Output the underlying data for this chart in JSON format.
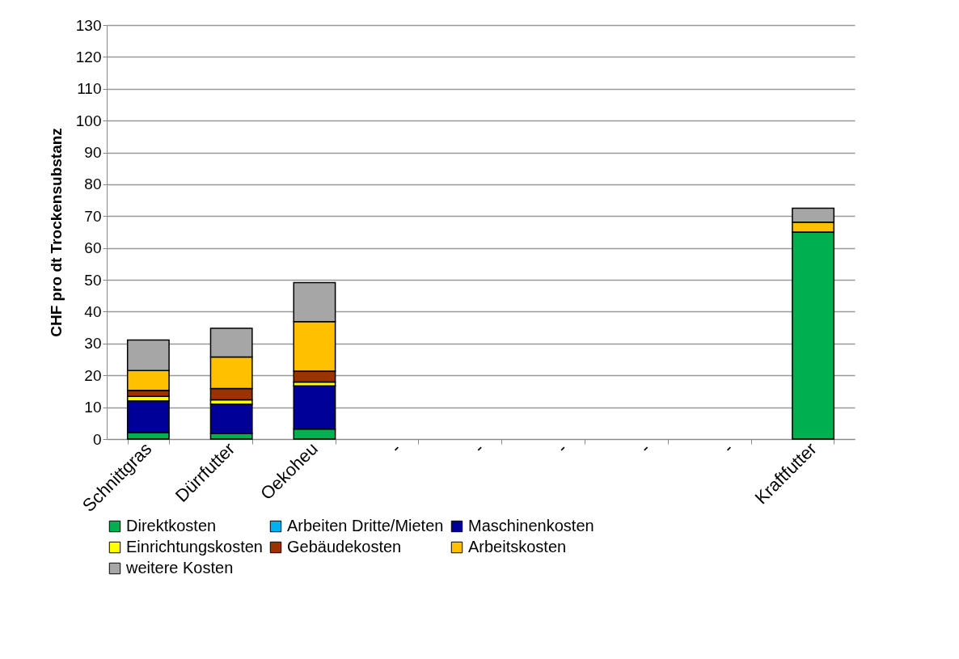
{
  "chart_data": {
    "type": "bar",
    "stacked": true,
    "ylabel": "CHF pro dt Trockensubstanz",
    "categories": [
      "Schnittgras",
      "Dürrfutter",
      "Oekoheu",
      "-",
      "-",
      "-",
      "-",
      "-",
      "Kraftfutter"
    ],
    "series": [
      {
        "name": "Direktkosten",
        "color": "#00b050",
        "values": [
          2.0,
          1.8,
          3.2,
          null,
          null,
          null,
          null,
          null,
          65
        ]
      },
      {
        "name": "Arbeiten Dritte/Mieten",
        "color": "#00b0f0",
        "values": [
          0,
          0,
          0,
          null,
          null,
          null,
          null,
          null,
          0
        ]
      },
      {
        "name": "Maschinenkosten",
        "color": "#000099",
        "values": [
          10.0,
          9.2,
          13.5,
          null,
          null,
          null,
          null,
          null,
          0
        ]
      },
      {
        "name": "Einrichtungskosten",
        "color": "#ffff00",
        "values": [
          1.4,
          1.3,
          1.2,
          null,
          null,
          null,
          null,
          null,
          0
        ]
      },
      {
        "name": "Gebäudekosten",
        "color": "#993300",
        "values": [
          1.9,
          3.6,
          3.4,
          null,
          null,
          null,
          null,
          null,
          0
        ]
      },
      {
        "name": "Arbeitskosten",
        "color": "#ffc000",
        "values": [
          6.2,
          9.9,
          15.6,
          null,
          null,
          null,
          null,
          null,
          3.1
        ]
      },
      {
        "name": "weitere Kosten",
        "color": "#a6a6a6",
        "values": [
          9.6,
          9.0,
          12.2,
          null,
          null,
          null,
          null,
          null,
          4.4
        ]
      }
    ],
    "ylim": [
      0,
      130
    ],
    "yticks": [
      0,
      10,
      20,
      30,
      40,
      50,
      60,
      70,
      80,
      90,
      100,
      110,
      120,
      130
    ],
    "grid": "y",
    "legend": "bottom"
  }
}
